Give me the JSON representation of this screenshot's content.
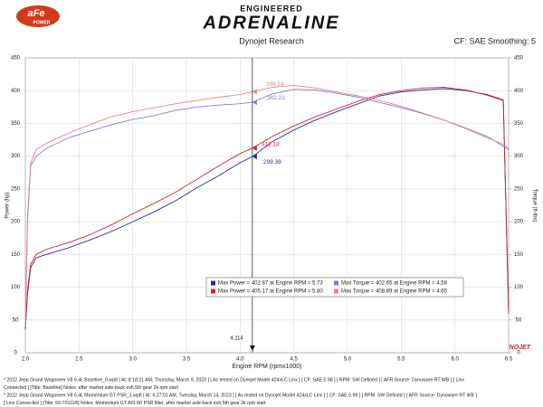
{
  "header": {
    "brand": "aFe",
    "brand_sub": "POWER",
    "tagline": "ENGINEERED",
    "product": "ADRENALINE"
  },
  "chart_data": {
    "type": "line",
    "title": "Dynojet Research",
    "subtitle": "CF: SAE Smoothing: 5",
    "x_label": "Engine RPM (rpmx1000)",
    "y_label": "Power (hp)",
    "y2_label": "Torque (ft-lbs)",
    "x": [
      2.0,
      2.02,
      2.05,
      2.1,
      2.2,
      2.4,
      2.6,
      2.8,
      3.0,
      3.2,
      3.4,
      3.6,
      3.8,
      4.0,
      4.114,
      4.3,
      4.5,
      4.7,
      4.9,
      5.1,
      5.3,
      5.5,
      5.7,
      5.9,
      6.1,
      6.3,
      6.45,
      6.5
    ],
    "series": [
      {
        "name": "Baseline Power",
        "color": "#2b2b9e",
        "values": [
          35,
          90,
          130,
          145,
          150,
          160,
          172,
          185,
          200,
          215,
          232,
          252,
          270,
          290,
          299.39,
          322,
          340,
          355,
          368,
          380,
          392,
          398,
          401,
          402.87,
          400,
          394,
          386,
          60
        ]
      },
      {
        "name": "Momentum Power",
        "color": "#c8282c",
        "values": [
          35,
          95,
          135,
          150,
          158,
          168,
          180,
          195,
          212,
          228,
          245,
          265,
          285,
          304,
          312.18,
          330,
          346,
          360,
          372,
          384,
          394,
          400,
          404,
          405.17,
          401,
          393,
          385,
          60
        ]
      },
      {
        "name": "Baseline Torque",
        "color": "#8080d0",
        "axis": "y2",
        "values": [
          40,
          200,
          285,
          300,
          312,
          328,
          338,
          348,
          356,
          362,
          370,
          375,
          378,
          380,
          382.23,
          395,
          402,
          401,
          396,
          390,
          382,
          374,
          365,
          355,
          343,
          330,
          315,
          310
        ]
      },
      {
        "name": "Momentum Torque",
        "color": "#e08a8a",
        "axis": "y2",
        "values": [
          40,
          210,
          290,
          310,
          320,
          335,
          348,
          360,
          368,
          374,
          380,
          385,
          390,
          394,
          398.54,
          405,
          408,
          404,
          398,
          392,
          385,
          376,
          366,
          355,
          342,
          328,
          318,
          312
        ]
      }
    ],
    "cursor": 4.114,
    "xlim": [
      2,
      6.5
    ],
    "xticks": [
      {
        "value": 2,
        "label": "2.0"
      },
      2.5,
      {
        "value": 3,
        "label": "3.0"
      },
      3.5,
      {
        "value": 4,
        "label": "4.0"
      },
      4.5,
      {
        "value": 5,
        "label": "5.0"
      },
      5.5,
      {
        "value": 6,
        "label": "6.0"
      },
      6.5
    ],
    "ylim": [
      0,
      450
    ],
    "yticks": [
      0,
      50,
      100,
      150,
      200,
      250,
      300,
      350,
      400,
      450
    ],
    "y2lim": [
      0,
      450
    ],
    "y2ticks": [
      0,
      50,
      100,
      150,
      200,
      250,
      300,
      350,
      400,
      450
    ],
    "grid": true,
    "legend": [
      {
        "text": "Max Power = 402.87 at Engine RPM = 5.73",
        "color": "#2b2b9e"
      },
      {
        "text": "Max Torque = 402.65 at Engine RPM = 4.58",
        "color": "#8080d0"
      },
      {
        "text": "Max Power = 405.17 at Engine RPM = 5.80",
        "color": "#c8282c"
      },
      {
        "text": "Max Torque = 408.89 at Engine RPM = 4.65",
        "color": "#e08a8a"
      }
    ],
    "logo": "DYNOJET"
  },
  "footer_lines": [
    "*   2022 Jepp Grand Wagoneer V8 6.4L Baseline_0.wp8 [ At: 8:18:21 AM, Thursday, March 9, 2023 ] [ As tested on Dynojet Model 424xLC Linx ] [ CF: SAE 0.98 ] [ RPM: SW Defined ] [ AFR Source: Dynoware RT WB ] [ Linx",
    "Connected ] [Title: Baseline]  Notes: after market axle-back exh,5th gear 2k rpm start",
    "*   2022 Jepp Grand Wagoneer V8 6.4L Momentum GT PSR_1.wp8 [ At: 6:27:01 AM, Tuesday, March 14, 2023 ] [ As tested on Dynojet Model 424xLC Linx ] [ CF: SAE 0.99 ] [ RPM: SW Defined ] [ AFR Source: Dynoware RT WB ]",
    "[ Linx Connected ] [Title: 50-70111R]  Notes: Momentum GT AIS W/ PSR filter, after market axle-back exh,5th gear 2k rpm start"
  ]
}
